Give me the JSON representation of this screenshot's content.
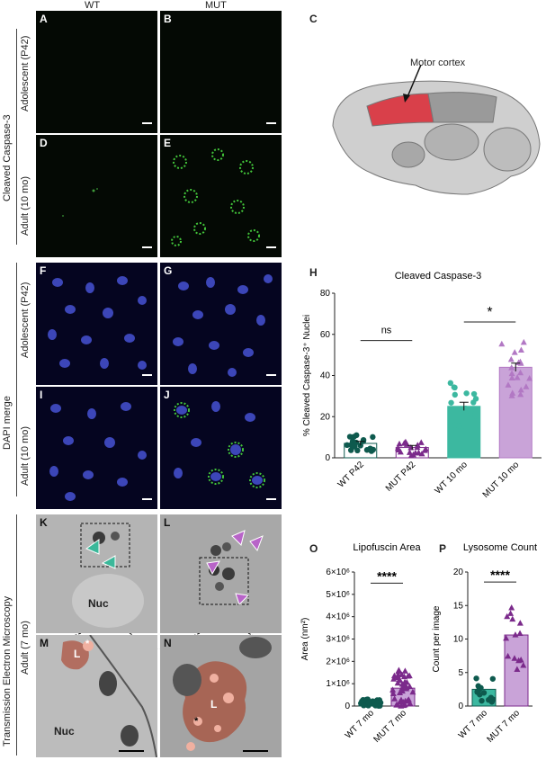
{
  "columns": {
    "wt": "WT",
    "mut": "MUT"
  },
  "row_groups": {
    "caspase": "Cleaved Caspase-3",
    "dapi": "DAPI merge",
    "tem": "Transmission Electron Microscopy"
  },
  "row_labels": {
    "adolescent": "Adolescent (P42)",
    "adult": "Adult (10 mo)",
    "adult7": "Adult (7 mo)"
  },
  "panels": {
    "A": "A",
    "B": "B",
    "C": "C",
    "D": "D",
    "E": "E",
    "F": "F",
    "G": "G",
    "H": "H",
    "I": "I",
    "J": "J",
    "K": "K",
    "L": "L",
    "M": "M",
    "N": "N",
    "O": "O",
    "P": "P"
  },
  "brain": {
    "label": "Motor cortex"
  },
  "tem_labels": {
    "nuc": "Nuc",
    "lys": "L",
    "star": "*"
  },
  "chart_H": {
    "type": "bar",
    "title": "Cleaved Caspase-3",
    "ylabel": "% Cleaved Caspase-3⁺ Nuclei",
    "categories": [
      "WT P42",
      "MUT P42",
      "WT 10 mo",
      "MUT 10 mo"
    ],
    "values": [
      7,
      5,
      25,
      44
    ],
    "sem": [
      1,
      1,
      2,
      2
    ],
    "ylim": [
      0,
      80
    ],
    "yticks": [
      "0",
      "20",
      "40",
      "60",
      "80"
    ],
    "colors": [
      "#0e5a4e",
      "#7b2a8b",
      "#3cb8a0",
      "#b278c4"
    ],
    "bar_fills": [
      "#ffffff",
      "#ffffff",
      "#3cb8a0",
      "#c9a3d8"
    ],
    "sig": [
      {
        "label": "ns"
      },
      {
        "label": "*"
      }
    ]
  },
  "chart_O": {
    "type": "bar",
    "title": "Lipofuscin Area",
    "ylabel": "Area (nm²)",
    "categories": [
      "WT 7 mo",
      "MUT 7 mo"
    ],
    "values": [
      0.15,
      0.8
    ],
    "ylim": [
      0,
      6
    ],
    "yticks": [
      "0",
      "1×10⁶",
      "2×10⁶",
      "3×10⁶",
      "4×10⁶",
      "5×10⁶",
      "6×10⁶"
    ],
    "sig": "****"
  },
  "chart_P": {
    "type": "bar",
    "title": "Lysosome Count",
    "ylabel": "Count per image",
    "categories": [
      "WT 7 mo",
      "MUT 7 mo"
    ],
    "values": [
      2.5,
      10.6
    ],
    "ylim": [
      0,
      20
    ],
    "yticks": [
      "0",
      "5",
      "10",
      "15",
      "20"
    ],
    "sig": "****"
  }
}
